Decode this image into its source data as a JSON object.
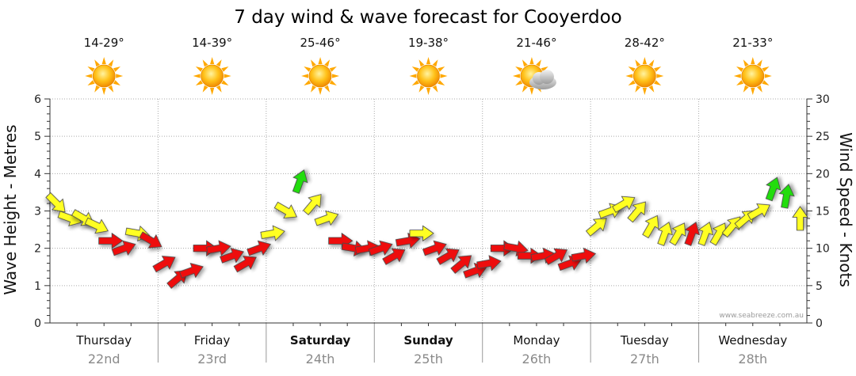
{
  "page": {
    "title": "7 day wind & wave forecast for Cooyerdoo",
    "credit": "www.seabreeze.com.au"
  },
  "colors": {
    "light": "#22dd11",
    "moderate": "#ffff22",
    "strong": "#ee1111",
    "grid": "#aaaaaa",
    "sun": "#ffbb00"
  },
  "days": [
    {
      "name": "Thursday",
      "date": "22nd",
      "temp": "14-29°",
      "icon": "sun-icon",
      "bold": false
    },
    {
      "name": "Friday",
      "date": "23rd",
      "temp": "14-39°",
      "icon": "sun-icon",
      "bold": false
    },
    {
      "name": "Saturday",
      "date": "24th",
      "temp": "25-46°",
      "icon": "sun-icon",
      "bold": true
    },
    {
      "name": "Sunday",
      "date": "25th",
      "temp": "19-38°",
      "icon": "sun-icon",
      "bold": true
    },
    {
      "name": "Monday",
      "date": "26th",
      "temp": "21-46°",
      "icon": "sun-cloud-icon",
      "bold": false
    },
    {
      "name": "Tuesday",
      "date": "27th",
      "temp": "28-42°",
      "icon": "sun-icon",
      "bold": false
    },
    {
      "name": "Wednesday",
      "date": "28th",
      "temp": "21-33°",
      "icon": "sun-icon",
      "bold": false
    }
  ],
  "chart_data": {
    "type": "line",
    "title": "7 day wind & wave forecast for Cooyerdoo",
    "ylabel": "Wave Height - Metres",
    "y2label": "Wind Speed - Knots",
    "ylim": [
      0,
      6
    ],
    "y2lim": [
      0,
      30
    ],
    "yticks": [
      "0",
      "1",
      "2",
      "3",
      "4",
      "5",
      "6"
    ],
    "y2ticks": [
      "0",
      "5",
      "10",
      "15",
      "20",
      "25",
      "30"
    ],
    "x_unit": "hours from Thursday 00:00",
    "series": [
      {
        "name": "Wind speed (knots) with direction arrows",
        "x": [
          0,
          3,
          6,
          9,
          12,
          15,
          18,
          21,
          24,
          27,
          30,
          33,
          36,
          39,
          42,
          45,
          48,
          51,
          54,
          57,
          60,
          63,
          66,
          69,
          72,
          75,
          78,
          81,
          84,
          87,
          90,
          93,
          96,
          99,
          102,
          105,
          108,
          111,
          114,
          117,
          120,
          123,
          126,
          129,
          132,
          135,
          138,
          141,
          144,
          147,
          150,
          153,
          156,
          159,
          162,
          165
        ],
        "knots": [
          16,
          14,
          14,
          13,
          11,
          10,
          12,
          11,
          8,
          6,
          7,
          10,
          10,
          9,
          8,
          10,
          12,
          15,
          19,
          16,
          14,
          11,
          10,
          10,
          10,
          9,
          11,
          12,
          10,
          9,
          8,
          7,
          8,
          10,
          10,
          9,
          9,
          9,
          8,
          9,
          13,
          15,
          16,
          15,
          13,
          12,
          12,
          12,
          12,
          12,
          13,
          14,
          15,
          18,
          17,
          14
        ],
        "direction_deg": [
          315,
          290,
          300,
          295,
          270,
          250,
          280,
          300,
          240,
          230,
          250,
          270,
          260,
          250,
          240,
          250,
          260,
          300,
          200,
          220,
          250,
          270,
          280,
          260,
          250,
          240,
          260,
          270,
          250,
          240,
          230,
          250,
          260,
          270,
          280,
          270,
          260,
          240,
          250,
          260,
          230,
          250,
          240,
          220,
          210,
          200,
          210,
          200,
          200,
          210,
          220,
          230,
          240,
          200,
          190,
          180
        ],
        "color_class": [
          "moderate",
          "moderate",
          "moderate",
          "moderate",
          "strong",
          "strong",
          "moderate",
          "strong",
          "strong",
          "strong",
          "strong",
          "strong",
          "strong",
          "strong",
          "strong",
          "strong",
          "moderate",
          "moderate",
          "light",
          "moderate",
          "moderate",
          "strong",
          "strong",
          "strong",
          "strong",
          "strong",
          "strong",
          "moderate",
          "strong",
          "strong",
          "strong",
          "strong",
          "strong",
          "strong",
          "strong",
          "strong",
          "strong",
          "strong",
          "strong",
          "strong",
          "moderate",
          "moderate",
          "moderate",
          "moderate",
          "moderate",
          "moderate",
          "moderate",
          "strong",
          "moderate",
          "moderate",
          "moderate",
          "moderate",
          "moderate",
          "light",
          "light",
          "moderate"
        ]
      }
    ]
  }
}
